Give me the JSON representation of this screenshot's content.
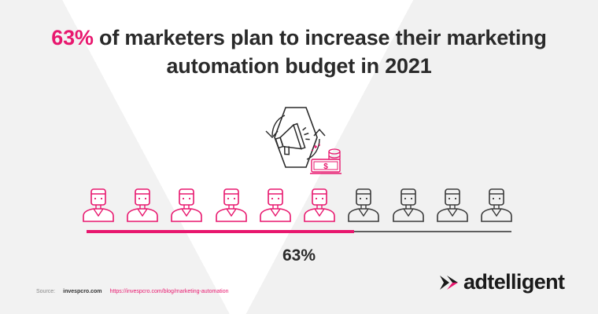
{
  "headline": {
    "highlight": "63%",
    "line1_rest": " of marketers plan to increase their marketing",
    "line2": "automation budget in 2021"
  },
  "people": {
    "total": 10,
    "highlighted": 6,
    "accent_color": "#e8176e",
    "neutral_color": "#3a3a3a"
  },
  "progress": {
    "value": 0.63,
    "label": "63%"
  },
  "source": {
    "label": "Source:",
    "site": "invespcro.com",
    "url": "https://invespcro.com/blog/marketing-automation"
  },
  "brand": {
    "name": "adtelligent"
  },
  "icons": {
    "hero": "megaphone-cycle-icon",
    "money": "money-stack-icon",
    "person": "person-icon",
    "logo": "adtelligent-logo-icon"
  }
}
